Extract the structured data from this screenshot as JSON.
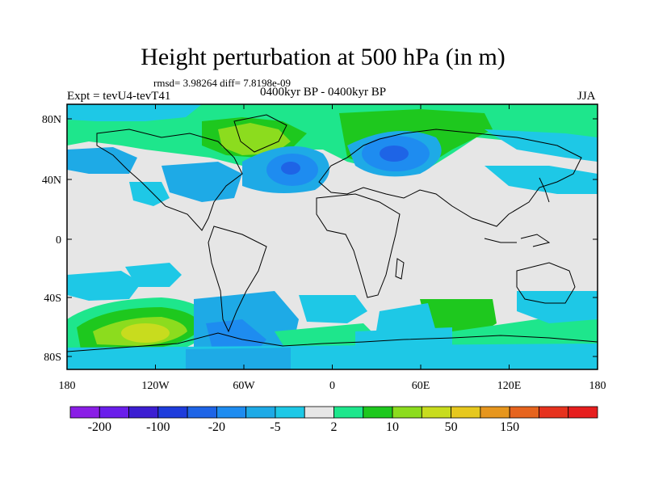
{
  "title": "Height perturbation at 500 hPa (in m)",
  "stats": "rmsd= 3.98264 diff= 7.8198e-09",
  "experiment": "Expt = tevU4-tevT41",
  "period": "0400kyr BP - 0400kyr BP",
  "season": "JJA",
  "lat_ticks": [
    "80N",
    "40N",
    "0",
    "40S",
    "80S"
  ],
  "lon_ticks": [
    "180",
    "120W",
    "60W",
    "0",
    "60E",
    "120E",
    "180"
  ],
  "colorbar": {
    "colors": [
      "#8a1ee6",
      "#6a1eeb",
      "#3c1ed2",
      "#1e3cdc",
      "#1e64e6",
      "#1e8cf0",
      "#1eaae6",
      "#1ec8e6",
      "#e6e6e6",
      "#1ee68c",
      "#1ec81e",
      "#8cdc1e",
      "#c8dc1e",
      "#e6c81e",
      "#e6961e",
      "#e6641e",
      "#e6321e",
      "#e61e1e"
    ],
    "labels": [
      "-200",
      "-100",
      "-20",
      "-5",
      "2",
      "10",
      "50",
      "150"
    ]
  }
}
